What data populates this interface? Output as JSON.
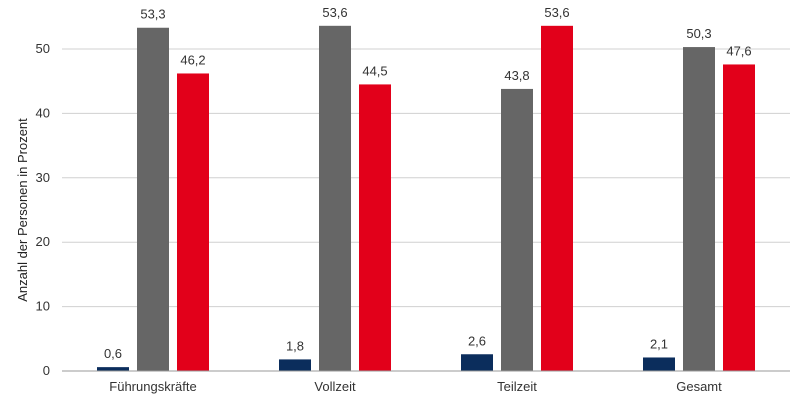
{
  "chart_data": {
    "type": "bar",
    "categories": [
      "Führungskräfte",
      "Vollzeit",
      "Teilzeit",
      "Gesamt"
    ],
    "series": [
      {
        "values": [
          0.6,
          1.8,
          2.6,
          2.1
        ],
        "value_labels": [
          "0,6",
          "1,8",
          "2,6",
          "2,1"
        ],
        "color": "#0b2d5c"
      },
      {
        "values": [
          53.3,
          53.6,
          43.8,
          50.3
        ],
        "value_labels": [
          "53,3",
          "53,6",
          "43,8",
          "50,3"
        ],
        "color": "#666666"
      },
      {
        "values": [
          46.2,
          44.5,
          53.6,
          47.6
        ],
        "value_labels": [
          "46,2",
          "44,5",
          "53,6",
          "47,6"
        ],
        "color": "#e2001a"
      }
    ],
    "ylabel": "Anzahl der Personen in Prozent",
    "xlabel": "",
    "ylim": [
      0,
      55
    ],
    "yticks": [
      0,
      10,
      20,
      30,
      40,
      50
    ],
    "grid": true,
    "legend": "none"
  }
}
